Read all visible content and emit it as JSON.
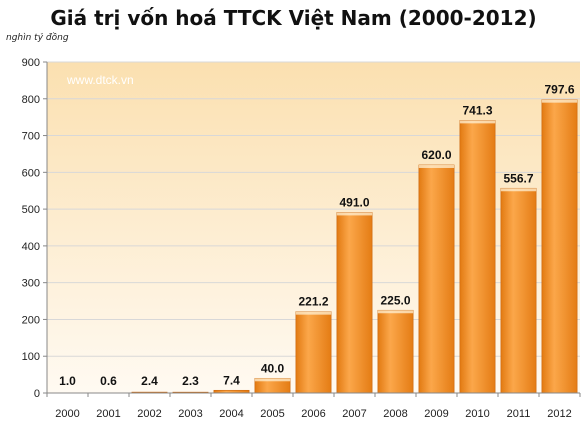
{
  "title": "Giá trị vốn hoá TTCK Việt Nam (2000-2012)",
  "unit_label": "nghìn tỷ đồng",
  "watermark": "www.dtck.vn",
  "chart_data": {
    "type": "bar",
    "categories": [
      "2000",
      "2001",
      "2002",
      "2003",
      "2004",
      "2005",
      "2006",
      "2007",
      "2008",
      "2009",
      "2010",
      "2011",
      "2012"
    ],
    "values": [
      1.0,
      0.6,
      2.4,
      2.3,
      7.4,
      40.0,
      221.2,
      491.0,
      225.0,
      620.0,
      741.3,
      556.7,
      797.6
    ],
    "data_labels": [
      "1.0",
      "0.6",
      "2.4",
      "2.3",
      "7.4",
      "40.0",
      "221.2",
      "491.0",
      "225.0",
      "620.0",
      "741.3",
      "556.7",
      "797.6"
    ],
    "yticks": [
      0,
      100,
      200,
      300,
      400,
      500,
      600,
      700,
      800,
      900
    ],
    "ylim": [
      0,
      900
    ],
    "grid": true,
    "colors": {
      "bar": "#f28a1e",
      "bar_light": "#fbb35c",
      "bar_dark": "#d9700e",
      "plot_bg_top": "#fbe3b8",
      "plot_bg_bottom": "#fffaf0"
    }
  }
}
